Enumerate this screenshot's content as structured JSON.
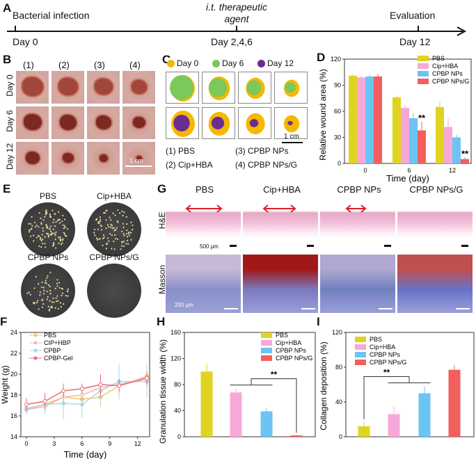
{
  "panel_a": {
    "letter": "A",
    "events": [
      "Bacterial infection",
      "i.t. therapeutic agent",
      "Evaluation"
    ],
    "days": [
      "Day 0",
      "Day 2,4,6",
      "Day 12"
    ]
  },
  "panel_b": {
    "letter": "B",
    "columns": [
      "(1)",
      "(2)",
      "(3)",
      "(4)"
    ],
    "rows": [
      "Day 0",
      "Day 6",
      "Day 12"
    ],
    "scale": "1 cm"
  },
  "panel_c": {
    "letter": "C",
    "legend": [
      "Day 0",
      "Day 6",
      "Day 12"
    ],
    "colors": [
      "#f5b800",
      "#7cc85a",
      "#6a2c91"
    ],
    "groups": [
      "(1) PBS",
      "(2) Cip+HBA",
      "(3) CPBP NPs",
      "(4) CPBP NPs/G"
    ],
    "scale": "1 cm"
  },
  "panel_e": {
    "letter": "E",
    "dishes": [
      "PBS",
      "Cip+HBA",
      "CPBP NPs",
      "CPBP NPs/G"
    ]
  },
  "panel_g": {
    "letter": "G",
    "columns": [
      "PBS",
      "Cip+HBA",
      "CPBP NPs",
      "CPBP NPs/G"
    ],
    "rows": [
      "H&E",
      "Masson"
    ],
    "scales": [
      "500 μm",
      "250 μm"
    ]
  },
  "colors": {
    "PBS": "#e0d321",
    "Cip+HBA": "#f8a8d8",
    "CPBP NPs": "#6cc4f4",
    "CPBP NPs/G": "#f25f5c"
  },
  "chart_data": [
    {
      "id": "D",
      "letter": "D",
      "type": "bar",
      "title": "",
      "xlabel": "Time (day)",
      "ylabel": "Relative wound area (%)",
      "ylim": [
        0,
        120
      ],
      "yticks": [
        "0",
        "30",
        "60",
        "90",
        "120"
      ],
      "categories": [
        "0",
        "6",
        "12"
      ],
      "series": [
        {
          "name": "PBS",
          "values": [
            101,
            76,
            65
          ],
          "errors": [
            1,
            2,
            6
          ]
        },
        {
          "name": "Cip+HBA",
          "values": [
            99,
            64,
            42
          ],
          "errors": [
            2,
            3,
            10
          ]
        },
        {
          "name": "CPBP NPs",
          "values": [
            100,
            52,
            30
          ],
          "errors": [
            2,
            6,
            3
          ]
        },
        {
          "name": "CPBP NPs/G",
          "values": [
            100,
            38,
            5
          ],
          "errors": [
            3,
            10,
            2
          ]
        }
      ],
      "annotations": [
        {
          "category": "6",
          "series": "CPBP NPs/G",
          "text": "**"
        },
        {
          "category": "12",
          "series": "CPBP NPs/G",
          "text": "**"
        }
      ],
      "legend": "top-right"
    },
    {
      "id": "F",
      "letter": "F",
      "type": "line",
      "xlabel": "Time (day)",
      "ylabel": "Weight (g)",
      "xlim": [
        -0.6,
        13.3
      ],
      "ylim": [
        14,
        24
      ],
      "xticks": [
        "0",
        "3",
        "6",
        "9",
        "12"
      ],
      "yticks": [
        "14",
        "16",
        "18",
        "20",
        "22",
        "24"
      ],
      "x": [
        0,
        2,
        4,
        6,
        8,
        10,
        13
      ],
      "series": [
        {
          "name": "PBS",
          "color": "#f0c860",
          "values": [
            16.7,
            17.1,
            17.8,
            17.6,
            17.8,
            18.9,
            19.8
          ],
          "errors": [
            0.4,
            0.6,
            0.6,
            0.5,
            0.9,
            0.8,
            0.9
          ]
        },
        {
          "name": "CIP+HBP",
          "color": "#f4b8b0",
          "values": [
            16.6,
            16.9,
            17.8,
            18.0,
            18.7,
            19.0,
            19.7
          ],
          "errors": [
            0.5,
            0.7,
            0.7,
            0.6,
            0.8,
            0.7,
            0.8
          ]
        },
        {
          "name": "CPBP",
          "color": "#a8d8e8",
          "values": [
            16.6,
            17.1,
            17.2,
            17.1,
            18.4,
            19.3,
            19.3
          ],
          "errors": [
            0.5,
            0.8,
            1.5,
            1.3,
            1.0,
            1.7,
            1.6
          ]
        },
        {
          "name": "CPBP-Gel",
          "color": "#e86a78",
          "values": [
            17.1,
            17.4,
            18.4,
            18.6,
            19.0,
            18.9,
            19.6
          ],
          "errors": [
            0.6,
            0.8,
            0.7,
            0.5,
            1.0,
            0.6,
            0.7
          ]
        }
      ],
      "legend": "top-left"
    },
    {
      "id": "H",
      "letter": "H",
      "type": "bar",
      "xlabel": "",
      "ylabel": "Granulation tissue width (%)",
      "ylim": [
        0,
        160
      ],
      "yticks": [
        "0",
        "40",
        "80",
        "120",
        "160"
      ],
      "categories": [
        "PBS",
        "Cip+HBA",
        "CPBP NPs",
        "CPBP NPs/G"
      ],
      "values": [
        100,
        68,
        39,
        2
      ],
      "errors": [
        12,
        6,
        5,
        1
      ],
      "significance": {
        "left": [
          "Cip+HBA",
          "CPBP NPs"
        ],
        "right": [
          "CPBP NPs/G"
        ],
        "text": "**"
      },
      "legend": "top-right"
    },
    {
      "id": "I",
      "letter": "I",
      "type": "bar",
      "xlabel": "",
      "ylabel": "Collagen deposition (%)",
      "ylim": [
        0,
        120
      ],
      "yticks": [
        "0",
        "40",
        "80",
        "120"
      ],
      "categories": [
        "PBS",
        "Cip+HBA",
        "CPBP NPs",
        "CPBP NPs/G"
      ],
      "values": [
        12,
        26,
        50,
        77
      ],
      "errors": [
        5,
        9,
        8,
        5
      ],
      "significance": {
        "left": [
          "PBS"
        ],
        "right": [
          "Cip+HBA",
          "CPBP NPs"
        ],
        "text": "**"
      },
      "legend": "top-left"
    }
  ]
}
